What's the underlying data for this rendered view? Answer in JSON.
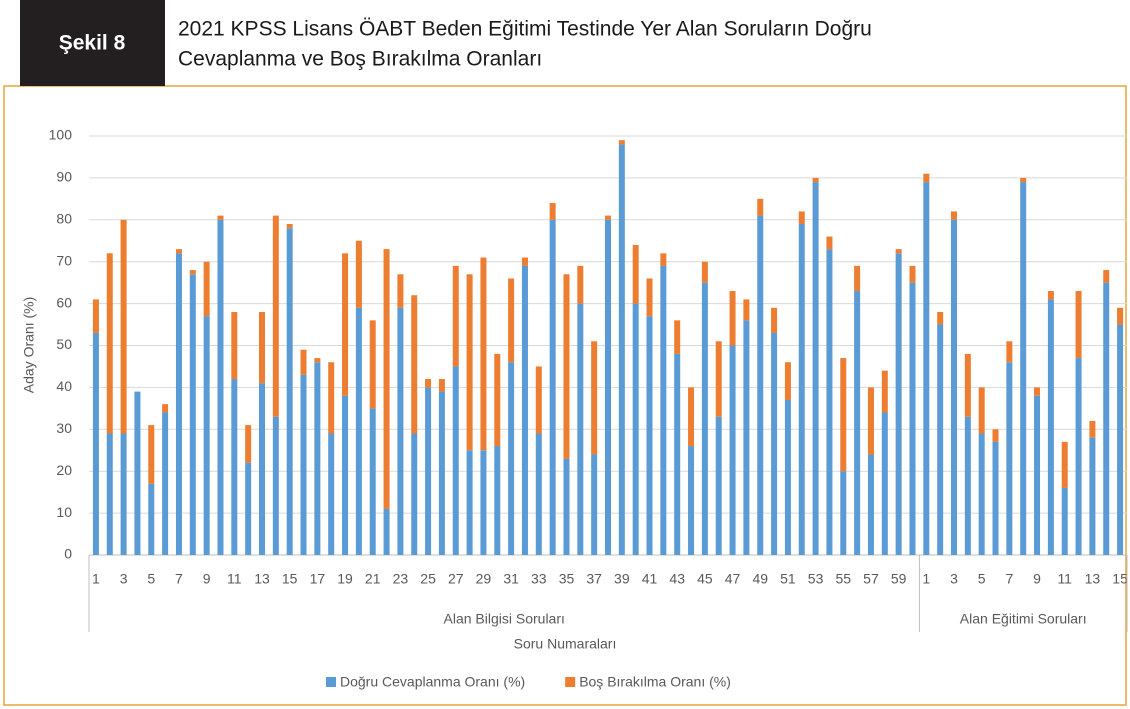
{
  "figure_label": "Şekil 8",
  "chart_data": {
    "type": "bar",
    "stacked": true,
    "title_lines": [
      "2021 KPSS Lisans ÖABT Beden Eğitimi Testinde Yer Alan Soruların Doğru",
      "Cevaplanma ve Boş Bırakılma Oranları"
    ],
    "xlabel": "Soru Numaraları",
    "ylabel": "Aday Oranı (%)",
    "groups": [
      {
        "name": "Alan Bilgisi Soruları",
        "categories": [
          "1",
          null,
          "3",
          null,
          "5",
          null,
          "7",
          null,
          "9",
          null,
          "11",
          null,
          "13",
          null,
          "15",
          null,
          "17",
          null,
          "19",
          null,
          "21",
          null,
          "23",
          null,
          "25",
          null,
          "27",
          null,
          "29",
          null,
          "31",
          null,
          "33",
          null,
          "35",
          null,
          "37",
          null,
          "39",
          null,
          "41",
          null,
          "43",
          null,
          "45",
          null,
          "47",
          null,
          "49",
          null,
          "51",
          null,
          "53",
          null,
          "55",
          null,
          "57",
          null,
          "59",
          null
        ]
      },
      {
        "name": "Alan Eğitimi Soruları",
        "categories": [
          "1",
          null,
          "3",
          null,
          "5",
          null,
          "7",
          null,
          "9",
          null,
          "11",
          null,
          "13",
          null,
          "15"
        ]
      }
    ],
    "series": [
      {
        "name": "Doğru Cevaplanma Oranı (%)",
        "color": "#5b9bd5",
        "values": [
          53,
          29,
          29,
          39,
          17,
          34,
          72,
          67,
          57,
          80,
          42,
          22,
          41,
          33,
          78,
          43,
          46,
          29,
          38,
          59,
          35,
          11,
          59,
          29,
          40,
          39,
          45,
          25,
          25,
          26,
          46,
          69,
          29,
          80,
          23,
          60,
          24,
          80,
          98,
          60,
          57,
          69,
          48,
          26,
          65,
          33,
          50,
          56,
          81,
          53,
          37,
          79,
          89,
          73,
          20,
          63,
          24,
          34,
          72,
          65,
          89,
          55,
          80,
          33,
          29,
          27,
          46,
          89,
          38,
          61,
          16,
          47,
          28,
          65,
          55
        ]
      },
      {
        "name": "Boş Bırakılma Oranı (%)",
        "color": "#ed7d31",
        "values": [
          8,
          43,
          51,
          0,
          14,
          2,
          1,
          1,
          13,
          1,
          16,
          9,
          17,
          48,
          1,
          6,
          1,
          17,
          34,
          16,
          21,
          62,
          8,
          33,
          2,
          3,
          24,
          42,
          46,
          22,
          20,
          2,
          16,
          4,
          44,
          9,
          27,
          1,
          1,
          14,
          9,
          3,
          8,
          14,
          5,
          18,
          13,
          5,
          4,
          6,
          9,
          3,
          1,
          3,
          27,
          6,
          16,
          10,
          1,
          4,
          2,
          3,
          2,
          15,
          11,
          3,
          5,
          1,
          2,
          2,
          11,
          16,
          4,
          3,
          4
        ]
      }
    ],
    "ylim": [
      0,
      100
    ],
    "yticks": [
      0,
      10,
      20,
      30,
      40,
      50,
      60,
      70,
      80,
      90,
      100
    ],
    "grid": true,
    "legend": "bottom"
  }
}
